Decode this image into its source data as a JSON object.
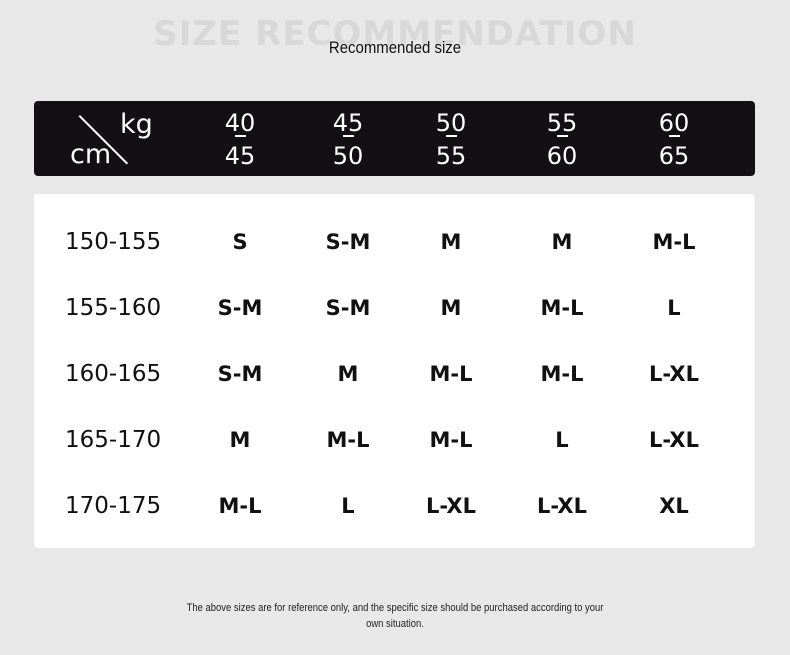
{
  "watermark_title": "SIZE RECOMMENDATION",
  "title": "Recommended size",
  "corner": {
    "top_right": "kg",
    "bottom_left": "cm"
  },
  "weights": [
    {
      "from": "40",
      "to": "45"
    },
    {
      "from": "45",
      "to": "50"
    },
    {
      "from": "50",
      "to": "55"
    },
    {
      "from": "55",
      "to": "60"
    },
    {
      "from": "60",
      "to": "65"
    }
  ],
  "rows": [
    {
      "height": "150-155",
      "sizes": [
        "S",
        "S-M",
        "M",
        "M",
        "M-L"
      ]
    },
    {
      "height": "155-160",
      "sizes": [
        "S-M",
        "S-M",
        "M",
        "M-L",
        "L"
      ]
    },
    {
      "height": "160-165",
      "sizes": [
        "S-M",
        "M",
        "M-L",
        "M-L",
        "L-XL"
      ]
    },
    {
      "height": "165-170",
      "sizes": [
        "M",
        "M-L",
        "M-L",
        "L",
        "L-XL"
      ]
    },
    {
      "height": "170-175",
      "sizes": [
        "M-L",
        "L",
        "L-XL",
        "L-XL",
        "XL"
      ]
    }
  ],
  "footnote": "The above sizes are for reference only, and the specific size should be purchased according to your own situation."
}
